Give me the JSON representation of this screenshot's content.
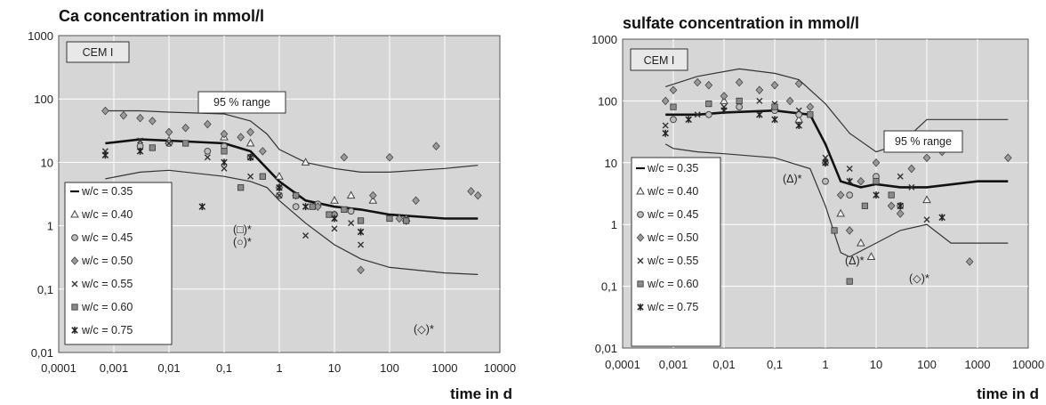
{
  "chart_data": [
    {
      "type": "scatter",
      "title": "Ca concentration in mmol/l",
      "xlabel": "time in d",
      "ylabel": "",
      "xscale": "log",
      "yscale": "log",
      "xlim": [
        0.0001,
        10000
      ],
      "ylim": [
        0.01,
        1000
      ],
      "x_ticks": [
        "0,0001",
        "0,001",
        "0,01",
        "0,1",
        "1",
        "10",
        "100",
        "1000",
        "10000"
      ],
      "y_ticks": [
        "0,01",
        "0,1",
        "1",
        "10",
        "100",
        "1000"
      ],
      "grid": true,
      "legend_position": "bottom-left",
      "tag": "CEM I",
      "annotations": [
        "95 % range",
        "(□)*",
        "(○)*",
        "(◇)*"
      ],
      "range_band": {
        "label": "95 % range",
        "upper": {
          "x": [
            0.0007,
            0.003,
            0.01,
            0.1,
            0.3,
            0.6,
            1,
            3,
            10,
            30,
            100,
            1000,
            4000
          ],
          "y": [
            65,
            65,
            62,
            58,
            45,
            28,
            16,
            10,
            8,
            7,
            7,
            8,
            9
          ]
        },
        "lower": {
          "x": [
            0.0007,
            0.003,
            0.01,
            0.1,
            0.3,
            0.6,
            1,
            3,
            10,
            30,
            100,
            1000,
            4000
          ],
          "y": [
            5.5,
            7,
            7.5,
            6,
            5,
            4,
            2.5,
            1.1,
            0.5,
            0.3,
            0.22,
            0.18,
            0.17
          ]
        }
      },
      "series": [
        {
          "name": "w/c = 0.35",
          "marker": "line",
          "x": [
            0.0007,
            0.003,
            0.01,
            0.1,
            0.3,
            1,
            3,
            10,
            30,
            100,
            1000,
            4000
          ],
          "y": [
            20,
            23,
            22,
            20,
            15,
            5,
            2.5,
            2,
            1.8,
            1.5,
            1.3,
            1.3
          ]
        },
        {
          "name": "w/c = 0.40",
          "marker": "triangle",
          "x": [
            0.01,
            0.1,
            0.3,
            1,
            3,
            10,
            20,
            50,
            200
          ],
          "y": [
            22,
            25,
            20,
            6,
            10,
            2.5,
            3,
            2.5,
            1.3
          ]
        },
        {
          "name": "w/c = 0.45",
          "marker": "circle",
          "x": [
            0.003,
            0.01,
            0.05,
            0.1,
            0.3,
            1,
            2,
            5,
            10,
            20
          ],
          "y": [
            18,
            20,
            15,
            18,
            12,
            3,
            2,
            2.2,
            1.5,
            1.7
          ]
        },
        {
          "name": "w/c = 0.50",
          "marker": "diamond",
          "x": [
            0.0007,
            0.0015,
            0.003,
            0.005,
            0.01,
            0.02,
            0.05,
            0.1,
            0.2,
            0.3,
            0.5,
            1,
            2,
            5,
            10,
            15,
            30,
            50,
            100,
            150,
            200,
            300,
            700,
            3000,
            4000
          ],
          "y": [
            65,
            55,
            50,
            45,
            30,
            35,
            40,
            28,
            25,
            30,
            15,
            4,
            3,
            2,
            1.5,
            12,
            0.2,
            3,
            12,
            1.3,
            1.2,
            2.5,
            18,
            3.5,
            3
          ]
        },
        {
          "name": "w/c = 0.55",
          "marker": "x",
          "x": [
            0.0007,
            0.003,
            0.01,
            0.05,
            0.1,
            0.3,
            1,
            3,
            10,
            20,
            30
          ],
          "y": [
            15,
            22,
            20,
            12,
            8,
            6,
            3,
            0.7,
            0.9,
            1.1,
            0.5
          ]
        },
        {
          "name": "w/c = 0.60",
          "marker": "square",
          "x": [
            0.005,
            0.02,
            0.1,
            0.2,
            0.5,
            2,
            4,
            8,
            15,
            30,
            100,
            200
          ],
          "y": [
            17,
            20,
            15,
            4,
            6,
            3,
            2,
            1.5,
            1.8,
            1.2,
            1.3,
            1.2
          ]
        },
        {
          "name": "w/c = 0.75",
          "marker": "star",
          "x": [
            0.0007,
            0.003,
            0.04,
            0.1,
            0.3,
            1,
            3,
            10,
            30
          ],
          "y": [
            13,
            15,
            2,
            10,
            12,
            4,
            2,
            1.3,
            0.8
          ]
        }
      ]
    },
    {
      "type": "scatter",
      "title": "sulfate concentration in mmol/l",
      "xlabel": "time in d",
      "ylabel": "",
      "xscale": "log",
      "yscale": "log",
      "xlim": [
        0.0001,
        10000
      ],
      "ylim": [
        0.01,
        1000
      ],
      "x_ticks": [
        "0,0001",
        "0,001",
        "0,01",
        "0,1",
        "1",
        "10",
        "100",
        "1000",
        "10000"
      ],
      "y_ticks": [
        "0,01",
        "0,1",
        "1",
        "10",
        "100",
        "1000"
      ],
      "grid": true,
      "legend_position": "bottom-left",
      "tag": "CEM I",
      "annotations": [
        "95 % range",
        "(Δ)*",
        "(Δ)*",
        "(◇)*"
      ],
      "range_band": {
        "label": "95 % range",
        "upper": {
          "x": [
            0.0007,
            0.003,
            0.02,
            0.1,
            0.3,
            1,
            3,
            10,
            30,
            100,
            1000,
            4000
          ],
          "y": [
            170,
            250,
            330,
            280,
            220,
            90,
            30,
            15,
            20,
            50,
            50,
            50
          ]
        },
        "lower": {
          "x": [
            0.0007,
            0.001,
            0.003,
            0.01,
            0.1,
            0.5,
            1,
            2,
            3,
            10,
            30,
            100,
            300,
            1000,
            4000
          ],
          "y": [
            20,
            17,
            15,
            14,
            12,
            8,
            2,
            0.35,
            0.3,
            0.5,
            0.8,
            1,
            0.5,
            0.5,
            0.5
          ]
        }
      },
      "series": [
        {
          "name": "w/c = 0.35",
          "marker": "line",
          "x": [
            0.0007,
            0.003,
            0.01,
            0.1,
            0.5,
            1,
            2,
            5,
            10,
            30,
            100,
            1000,
            4000
          ],
          "y": [
            60,
            60,
            65,
            70,
            60,
            20,
            5,
            4,
            4.5,
            4,
            4,
            5,
            5
          ]
        },
        {
          "name": "w/c = 0.40",
          "marker": "triangle",
          "x": [
            0.01,
            0.1,
            0.3,
            2,
            5,
            8,
            30,
            100,
            400
          ],
          "y": [
            100,
            80,
            50,
            1.5,
            0.5,
            0.3,
            18,
            2.5,
            22
          ]
        },
        {
          "name": "w/c = 0.45",
          "marker": "circle",
          "x": [
            0.001,
            0.005,
            0.02,
            0.1,
            0.3,
            1,
            3,
            10,
            30
          ],
          "y": [
            50,
            60,
            80,
            70,
            60,
            5,
            3,
            6,
            2
          ]
        },
        {
          "name": "w/c = 0.50",
          "marker": "diamond",
          "x": [
            0.0007,
            0.001,
            0.003,
            0.005,
            0.01,
            0.02,
            0.05,
            0.1,
            0.2,
            0.3,
            0.5,
            1,
            2,
            3,
            5,
            10,
            20,
            30,
            50,
            100,
            200,
            700,
            4000
          ],
          "y": [
            100,
            150,
            200,
            180,
            120,
            200,
            150,
            180,
            100,
            190,
            80,
            10,
            3,
            0.8,
            5,
            10,
            2,
            1.5,
            8,
            12,
            15,
            0.25,
            12
          ]
        },
        {
          "name": "w/c = 0.55",
          "marker": "x",
          "x": [
            0.0007,
            0.003,
            0.01,
            0.05,
            0.1,
            0.3,
            1,
            3,
            10,
            30,
            50,
            100
          ],
          "y": [
            40,
            60,
            80,
            100,
            90,
            70,
            12,
            8,
            5,
            6,
            4,
            1.2
          ]
        },
        {
          "name": "w/c = 0.60",
          "marker": "square",
          "x": [
            0.001,
            0.005,
            0.02,
            0.1,
            0.5,
            1.5,
            3,
            6,
            10,
            20
          ],
          "y": [
            80,
            90,
            100,
            80,
            60,
            0.8,
            0.12,
            2,
            5,
            3
          ]
        },
        {
          "name": "w/c = 0.75",
          "marker": "star",
          "x": [
            0.0007,
            0.002,
            0.01,
            0.05,
            0.1,
            0.3,
            1,
            3,
            10,
            30,
            200
          ],
          "y": [
            30,
            50,
            70,
            60,
            50,
            40,
            10,
            5,
            3,
            2,
            1.3
          ]
        }
      ]
    }
  ]
}
